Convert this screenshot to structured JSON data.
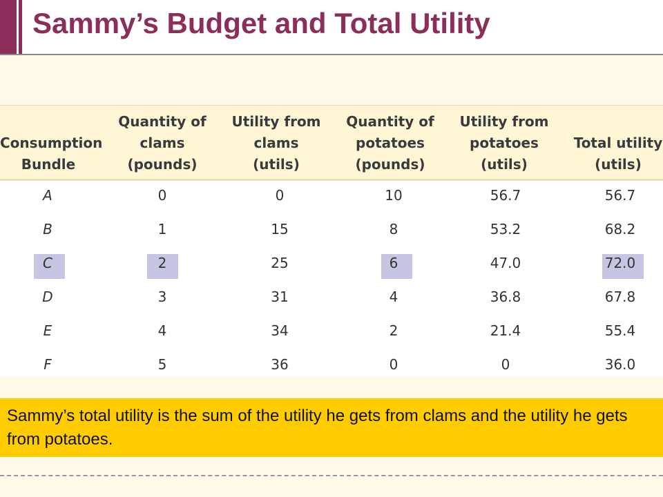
{
  "title": "Sammy’s Budget and Total Utility",
  "table": {
    "headers": [
      "Consumption\nBundle",
      "Quantity of\nclams\n(pounds)",
      "Utility from\nclams\n(utils)",
      "Quantity of\npotatoes\n(pounds)",
      "Utility from\npotatoes\n(utils)",
      "Total utility\n(utils)"
    ],
    "rows": [
      [
        "A",
        "0",
        "0",
        "10",
        "56.7",
        "56.7"
      ],
      [
        "B",
        "1",
        "15",
        "8",
        "53.2",
        "68.2"
      ],
      [
        "C",
        "2",
        "25",
        "6",
        "47.0",
        "72.0"
      ],
      [
        "D",
        "3",
        "31",
        "4",
        "36.8",
        "67.8"
      ],
      [
        "E",
        "4",
        "34",
        "2",
        "21.4",
        "55.4"
      ],
      [
        "F",
        "5",
        "36",
        "0",
        "0",
        "36.0"
      ]
    ],
    "highlighted_row": "C",
    "highlight_color": "#c6c6e4"
  },
  "note": "Sammy’s total utility is the sum of the utility he gets from clams and the utility he gets from potatoes.",
  "colors": {
    "title": "#8b2f5a",
    "note_bg": "#ffcc00"
  }
}
